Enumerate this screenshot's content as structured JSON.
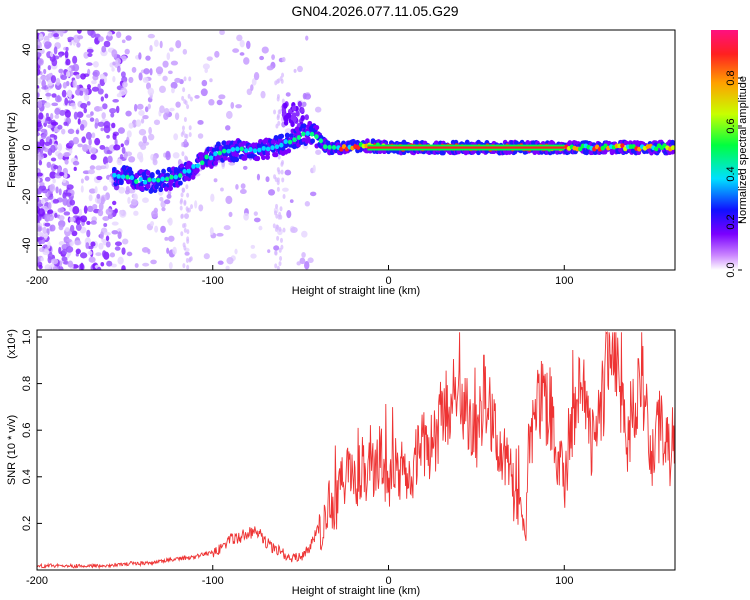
{
  "title": "GN04.2026.077.11.05.G29",
  "chart_data": [
    {
      "type": "heatmap",
      "xlabel": "Height of straight line (km)",
      "ylabel": "Frequency (Hz)",
      "xlim": [
        -200,
        163
      ],
      "ylim": [
        -50,
        48
      ],
      "xticks": [
        -200,
        -100,
        0,
        100
      ],
      "yticks": [
        -40,
        -20,
        0,
        20,
        40
      ],
      "colorbar": {
        "label": "Normalized spectral amplitude",
        "range": [
          0,
          1
        ],
        "ticks": [
          "0.0",
          "0.2",
          "0.4",
          "0.6",
          "0.8"
        ],
        "tick_values": [
          0.0,
          0.2,
          0.4,
          0.6,
          0.8
        ],
        "colors": [
          "#ffffff",
          "#cc88ff",
          "#7a00ff",
          "#1010ff",
          "#00e0ff",
          "#00ff40",
          "#c8ff00",
          "#ffa000",
          "#ff2020",
          "#ff1080"
        ]
      },
      "ridge": {
        "x": [
          -155,
          -145,
          -135,
          -125,
          -115,
          -105,
          -95,
          -85,
          -75,
          -65,
          -55,
          -45,
          -40,
          -35,
          -25,
          -15,
          0,
          50,
          100,
          130,
          163
        ],
        "y": [
          -11,
          -13,
          -14,
          -13,
          -10,
          -5,
          -2,
          -1,
          -1,
          0,
          3,
          6,
          4,
          0,
          0,
          1,
          0,
          0,
          0,
          0,
          0
        ]
      }
    },
    {
      "type": "line",
      "xlabel": "Height of straight line (km)",
      "ylabel": "SNR (10 * v/v)",
      "scale_label": "(x10⁴)",
      "xlim": [
        -200,
        163
      ],
      "ylim": [
        0,
        1.03
      ],
      "xticks": [
        -200,
        -100,
        0,
        100
      ],
      "yticks": [
        "0.2",
        "0.4",
        "0.6",
        "0.8",
        "1.0"
      ],
      "ytick_values": [
        0.2,
        0.4,
        0.6,
        0.8,
        1.0
      ],
      "series": [
        {
          "name": "SNR",
          "color": "#ee3333",
          "x": [
            -200,
            -190,
            -180,
            -170,
            -160,
            -150,
            -140,
            -130,
            -120,
            -110,
            -100,
            -95,
            -90,
            -85,
            -80,
            -75,
            -70,
            -65,
            -60,
            -55,
            -50,
            -45,
            -40,
            -36,
            -34,
            -30,
            -25,
            -20,
            -15,
            -10,
            -5,
            0,
            5,
            10,
            15,
            20,
            25,
            30,
            35,
            40,
            45,
            50,
            55,
            60,
            65,
            70,
            75,
            78,
            80,
            85,
            90,
            95,
            100,
            105,
            110,
            115,
            120,
            125,
            130,
            135,
            140,
            145,
            150,
            155,
            160,
            163
          ],
          "y": [
            0.02,
            0.02,
            0.02,
            0.02,
            0.02,
            0.03,
            0.03,
            0.04,
            0.05,
            0.06,
            0.08,
            0.1,
            0.14,
            0.15,
            0.16,
            0.18,
            0.13,
            0.1,
            0.08,
            0.06,
            0.06,
            0.1,
            0.18,
            0.25,
            0.35,
            0.3,
            0.45,
            0.4,
            0.5,
            0.45,
            0.55,
            0.4,
            0.5,
            0.45,
            0.5,
            0.62,
            0.55,
            0.7,
            0.8,
            0.88,
            0.72,
            0.6,
            0.85,
            0.7,
            0.55,
            0.4,
            0.25,
            0.15,
            0.55,
            0.8,
            0.75,
            0.6,
            0.4,
            0.7,
            0.85,
            0.6,
            0.7,
            0.95,
            1.0,
            0.6,
            0.75,
            0.85,
            0.5,
            0.7,
            0.55,
            0.6
          ]
        }
      ]
    }
  ]
}
